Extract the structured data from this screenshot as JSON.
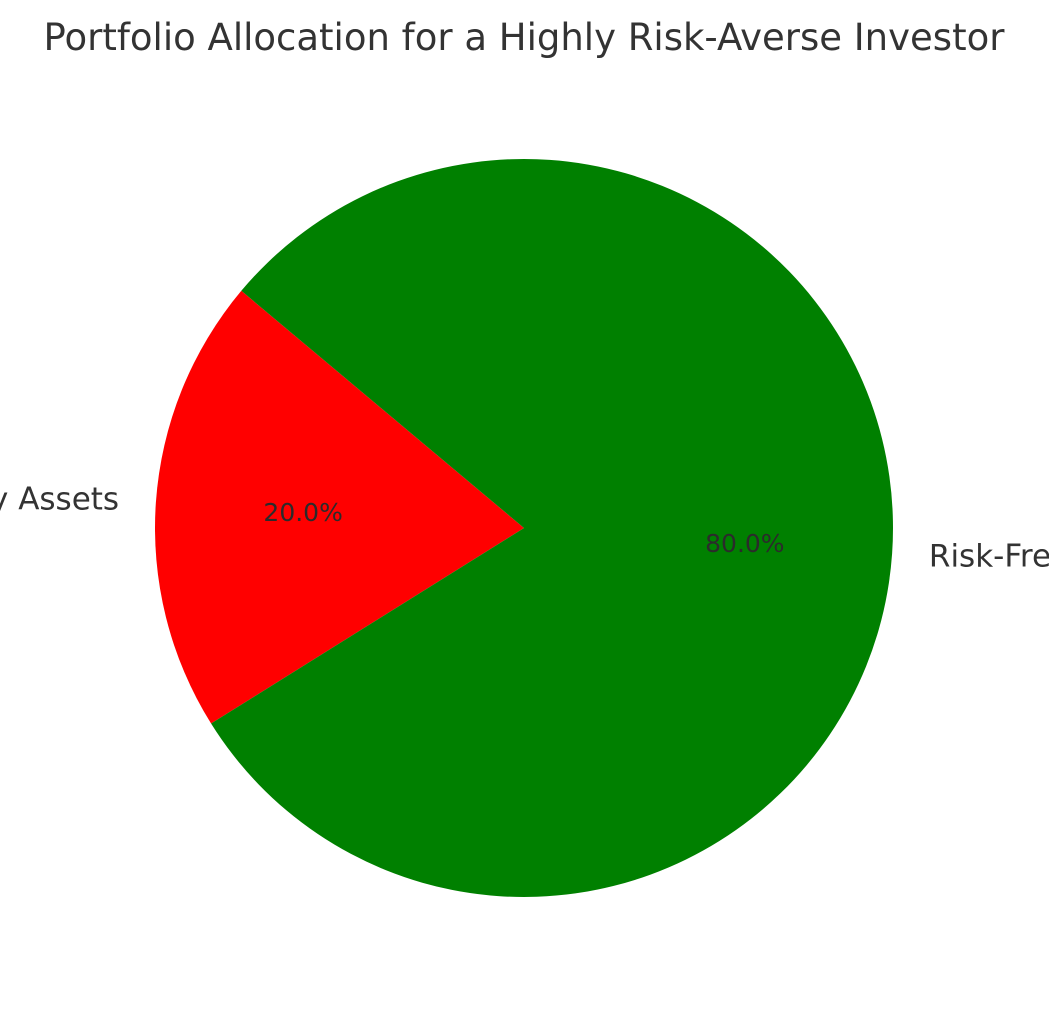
{
  "chart_data": {
    "type": "pie",
    "title": "Portfolio Allocation for a Highly Risk-Averse Investor",
    "slices": [
      {
        "label": "Risky Assets",
        "value": 20.0,
        "pct_label": "20.0%",
        "color": "#ff0000"
      },
      {
        "label": "Risk-Free Assets",
        "value": 80.0,
        "pct_label": "80.0%",
        "color": "#008000"
      }
    ],
    "start_angle_deg": 140,
    "direction": "counterclockwise",
    "legend": "none"
  }
}
